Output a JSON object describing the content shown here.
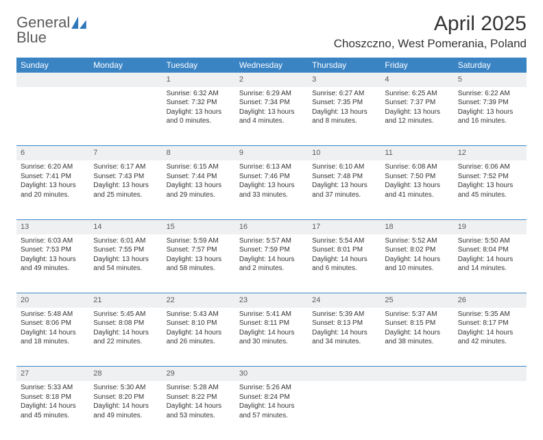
{
  "logo": {
    "line1": "General",
    "line2": "Blue",
    "color_gray": "#5b5b5b",
    "color_blue": "#2f77bb"
  },
  "title": "April 2025",
  "location": "Choszczno, West Pomerania, Poland",
  "colors": {
    "header_bg": "#3b84c4",
    "daynum_bg": "#eef0f2",
    "text": "#333333"
  },
  "day_headers": [
    "Sunday",
    "Monday",
    "Tuesday",
    "Wednesday",
    "Thursday",
    "Friday",
    "Saturday"
  ],
  "weeks": [
    [
      null,
      null,
      {
        "n": "1",
        "sr": "6:32 AM",
        "ss": "7:32 PM",
        "dl": "13 hours and 0 minutes."
      },
      {
        "n": "2",
        "sr": "6:29 AM",
        "ss": "7:34 PM",
        "dl": "13 hours and 4 minutes."
      },
      {
        "n": "3",
        "sr": "6:27 AM",
        "ss": "7:35 PM",
        "dl": "13 hours and 8 minutes."
      },
      {
        "n": "4",
        "sr": "6:25 AM",
        "ss": "7:37 PM",
        "dl": "13 hours and 12 minutes."
      },
      {
        "n": "5",
        "sr": "6:22 AM",
        "ss": "7:39 PM",
        "dl": "13 hours and 16 minutes."
      }
    ],
    [
      {
        "n": "6",
        "sr": "6:20 AM",
        "ss": "7:41 PM",
        "dl": "13 hours and 20 minutes."
      },
      {
        "n": "7",
        "sr": "6:17 AM",
        "ss": "7:43 PM",
        "dl": "13 hours and 25 minutes."
      },
      {
        "n": "8",
        "sr": "6:15 AM",
        "ss": "7:44 PM",
        "dl": "13 hours and 29 minutes."
      },
      {
        "n": "9",
        "sr": "6:13 AM",
        "ss": "7:46 PM",
        "dl": "13 hours and 33 minutes."
      },
      {
        "n": "10",
        "sr": "6:10 AM",
        "ss": "7:48 PM",
        "dl": "13 hours and 37 minutes."
      },
      {
        "n": "11",
        "sr": "6:08 AM",
        "ss": "7:50 PM",
        "dl": "13 hours and 41 minutes."
      },
      {
        "n": "12",
        "sr": "6:06 AM",
        "ss": "7:52 PM",
        "dl": "13 hours and 45 minutes."
      }
    ],
    [
      {
        "n": "13",
        "sr": "6:03 AM",
        "ss": "7:53 PM",
        "dl": "13 hours and 49 minutes."
      },
      {
        "n": "14",
        "sr": "6:01 AM",
        "ss": "7:55 PM",
        "dl": "13 hours and 54 minutes."
      },
      {
        "n": "15",
        "sr": "5:59 AM",
        "ss": "7:57 PM",
        "dl": "13 hours and 58 minutes."
      },
      {
        "n": "16",
        "sr": "5:57 AM",
        "ss": "7:59 PM",
        "dl": "14 hours and 2 minutes."
      },
      {
        "n": "17",
        "sr": "5:54 AM",
        "ss": "8:01 PM",
        "dl": "14 hours and 6 minutes."
      },
      {
        "n": "18",
        "sr": "5:52 AM",
        "ss": "8:02 PM",
        "dl": "14 hours and 10 minutes."
      },
      {
        "n": "19",
        "sr": "5:50 AM",
        "ss": "8:04 PM",
        "dl": "14 hours and 14 minutes."
      }
    ],
    [
      {
        "n": "20",
        "sr": "5:48 AM",
        "ss": "8:06 PM",
        "dl": "14 hours and 18 minutes."
      },
      {
        "n": "21",
        "sr": "5:45 AM",
        "ss": "8:08 PM",
        "dl": "14 hours and 22 minutes."
      },
      {
        "n": "22",
        "sr": "5:43 AM",
        "ss": "8:10 PM",
        "dl": "14 hours and 26 minutes."
      },
      {
        "n": "23",
        "sr": "5:41 AM",
        "ss": "8:11 PM",
        "dl": "14 hours and 30 minutes."
      },
      {
        "n": "24",
        "sr": "5:39 AM",
        "ss": "8:13 PM",
        "dl": "14 hours and 34 minutes."
      },
      {
        "n": "25",
        "sr": "5:37 AM",
        "ss": "8:15 PM",
        "dl": "14 hours and 38 minutes."
      },
      {
        "n": "26",
        "sr": "5:35 AM",
        "ss": "8:17 PM",
        "dl": "14 hours and 42 minutes."
      }
    ],
    [
      {
        "n": "27",
        "sr": "5:33 AM",
        "ss": "8:18 PM",
        "dl": "14 hours and 45 minutes."
      },
      {
        "n": "28",
        "sr": "5:30 AM",
        "ss": "8:20 PM",
        "dl": "14 hours and 49 minutes."
      },
      {
        "n": "29",
        "sr": "5:28 AM",
        "ss": "8:22 PM",
        "dl": "14 hours and 53 minutes."
      },
      {
        "n": "30",
        "sr": "5:26 AM",
        "ss": "8:24 PM",
        "dl": "14 hours and 57 minutes."
      },
      null,
      null,
      null
    ]
  ],
  "labels": {
    "sunrise": "Sunrise:",
    "sunset": "Sunset:",
    "daylight": "Daylight:"
  }
}
